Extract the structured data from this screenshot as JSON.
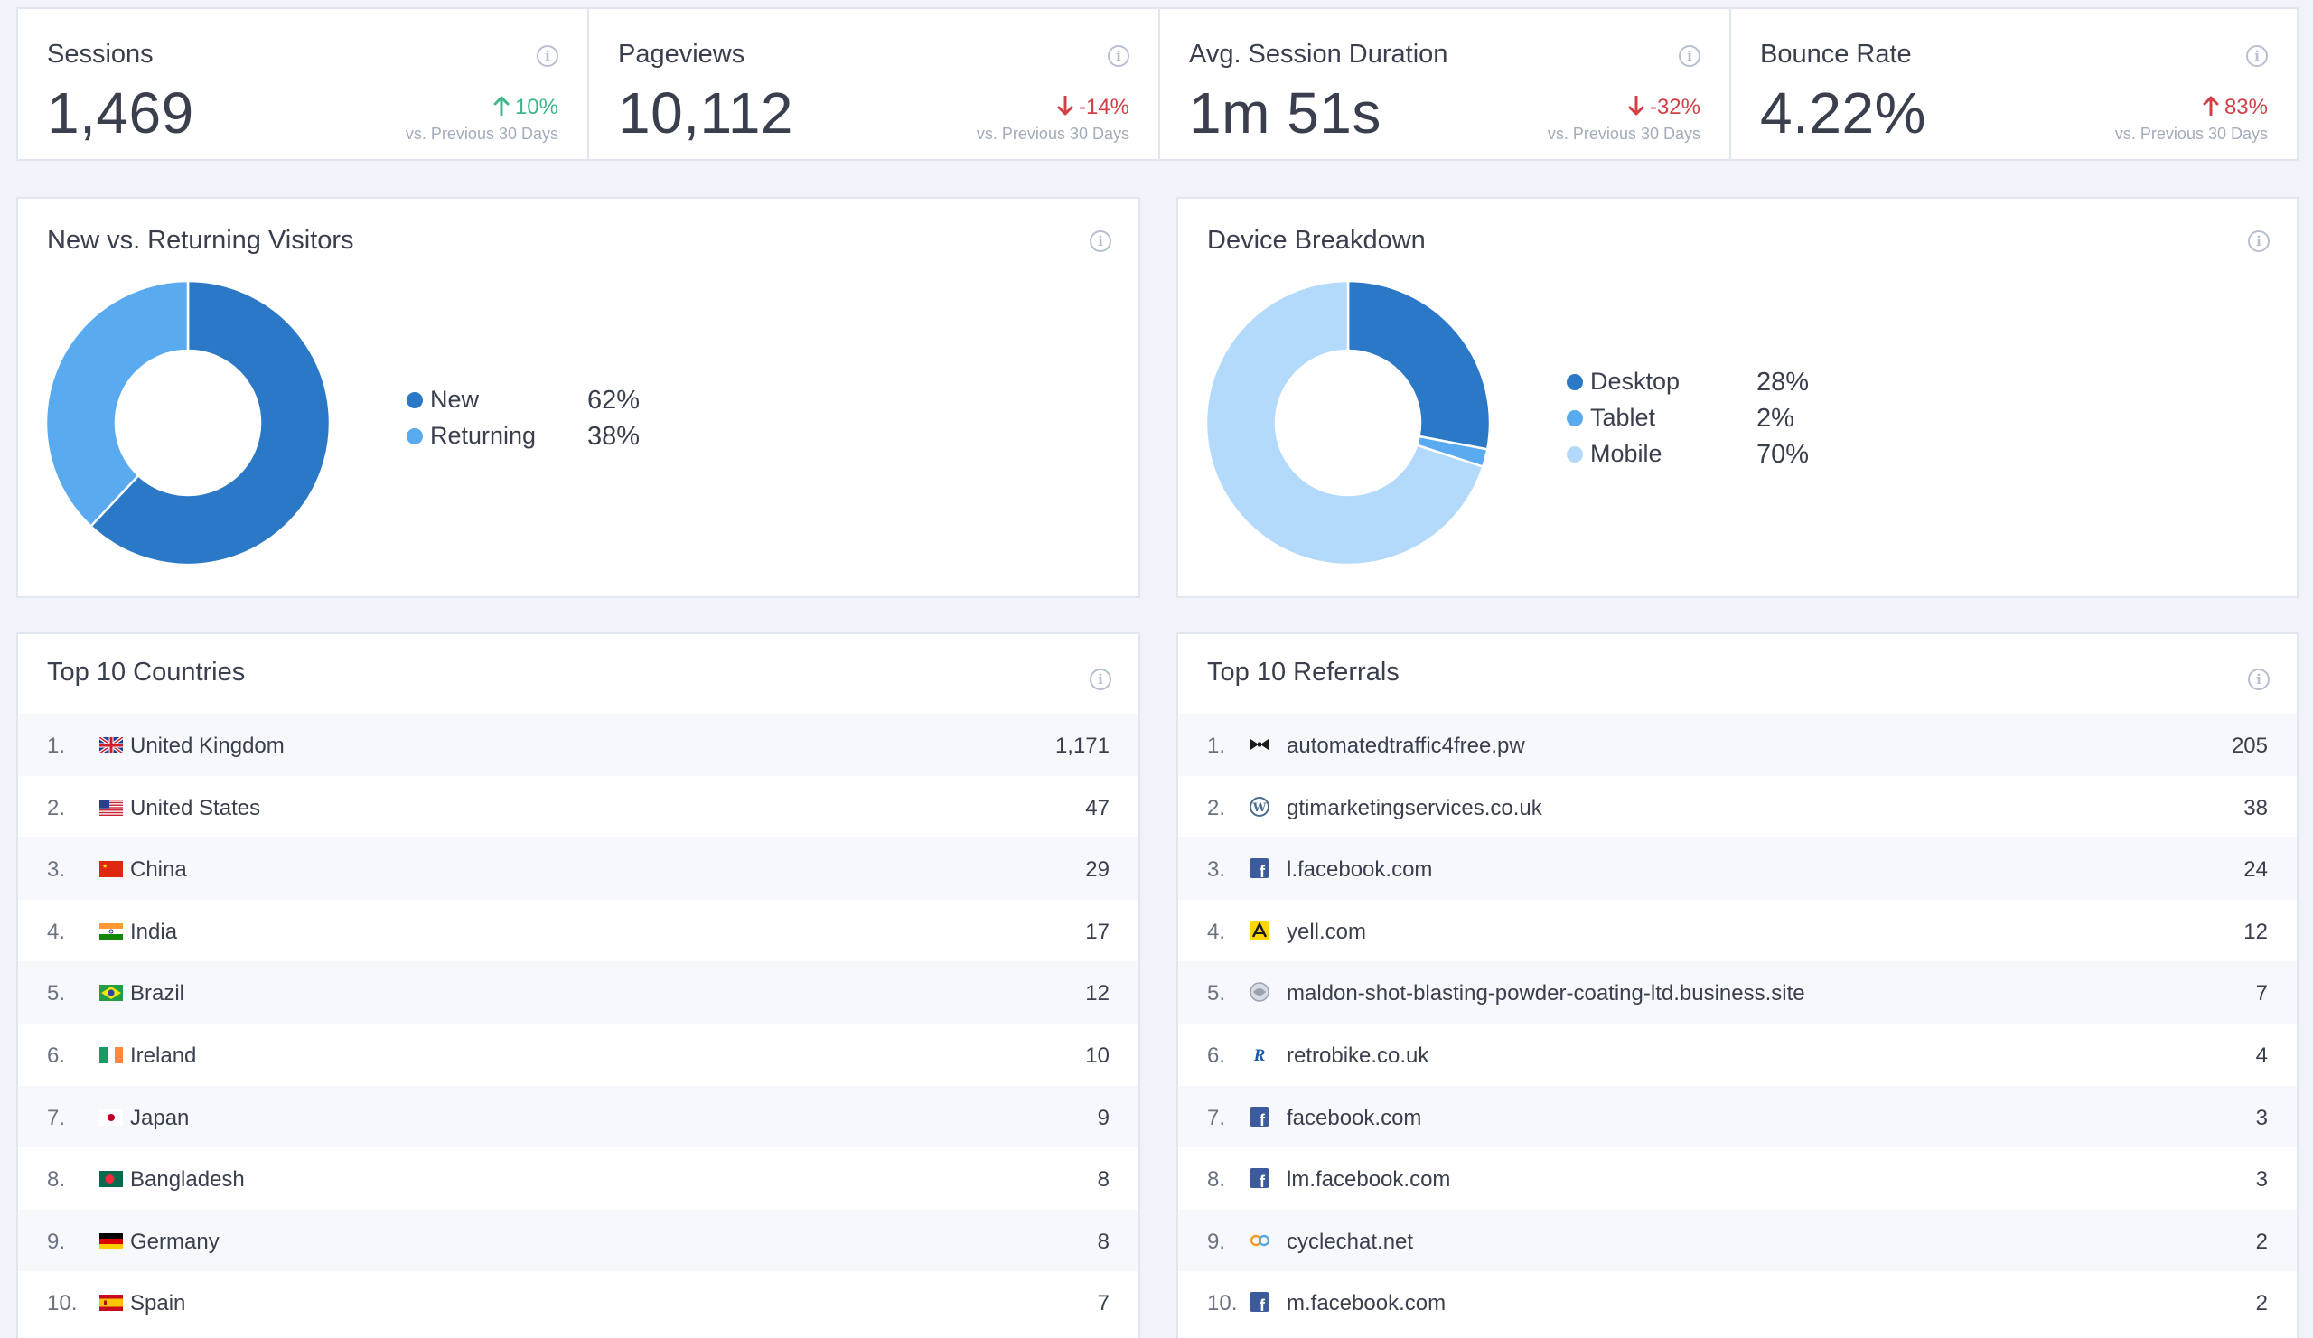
{
  "colors": {
    "up_green": "#3fb889",
    "down_red": "#d24046",
    "new": "#2b79c6",
    "returning": "#5aaaf0",
    "desktop": "#2b79c6",
    "tablet": "#5aaaf0",
    "mobile": "#b3d9fb"
  },
  "kpis": [
    {
      "title": "Sessions",
      "value": "1,469",
      "change": "10%",
      "direction": "up",
      "compare": "vs. Previous 30 Days"
    },
    {
      "title": "Pageviews",
      "value": "10,112",
      "change": "-14%",
      "direction": "down",
      "compare": "vs. Previous 30 Days"
    },
    {
      "title": "Avg. Session Duration",
      "value": "1m 51s",
      "change": "-32%",
      "direction": "down",
      "compare": "vs. Previous 30 Days"
    },
    {
      "title": "Bounce Rate",
      "value": "4.22%",
      "change": "83%",
      "direction": "up-bad",
      "compare": "vs. Previous 30 Days"
    }
  ],
  "visitors": {
    "title": "New vs. Returning Visitors",
    "items": [
      {
        "label": "New",
        "pct": "62%",
        "value": 62
      },
      {
        "label": "Returning",
        "pct": "38%",
        "value": 38
      }
    ]
  },
  "devices": {
    "title": "Device Breakdown",
    "items": [
      {
        "label": "Desktop",
        "pct": "28%",
        "value": 28
      },
      {
        "label": "Tablet",
        "pct": "2%",
        "value": 2
      },
      {
        "label": "Mobile",
        "pct": "70%",
        "value": 70
      }
    ]
  },
  "countries": {
    "title": "Top 10 Countries",
    "rows": [
      {
        "rank": "1.",
        "name": "United Kingdom",
        "count": "1,171",
        "flag": "gb-flag-icon"
      },
      {
        "rank": "2.",
        "name": "United States",
        "count": "47",
        "flag": "us-flag-icon"
      },
      {
        "rank": "3.",
        "name": "China",
        "count": "29",
        "flag": "cn-flag-icon"
      },
      {
        "rank": "4.",
        "name": "India",
        "count": "17",
        "flag": "in-flag-icon"
      },
      {
        "rank": "5.",
        "name": "Brazil",
        "count": "12",
        "flag": "br-flag-icon"
      },
      {
        "rank": "6.",
        "name": "Ireland",
        "count": "10",
        "flag": "ie-flag-icon"
      },
      {
        "rank": "7.",
        "name": "Japan",
        "count": "9",
        "flag": "jp-flag-icon"
      },
      {
        "rank": "8.",
        "name": "Bangladesh",
        "count": "8",
        "flag": "bd-flag-icon"
      },
      {
        "rank": "9.",
        "name": "Germany",
        "count": "8",
        "flag": "de-flag-icon"
      },
      {
        "rank": "10.",
        "name": "Spain",
        "count": "7",
        "flag": "es-flag-icon"
      }
    ]
  },
  "referrals": {
    "title": "Top 10 Referrals",
    "rows": [
      {
        "rank": "1.",
        "name": "automatedtraffic4free.pw",
        "count": "205",
        "icon": "bowtie-icon"
      },
      {
        "rank": "2.",
        "name": "gtimarketingservices.co.uk",
        "count": "38",
        "icon": "wordpress-icon"
      },
      {
        "rank": "3.",
        "name": "l.facebook.com",
        "count": "24",
        "icon": "facebook-icon"
      },
      {
        "rank": "4.",
        "name": "yell.com",
        "count": "12",
        "icon": "yell-icon"
      },
      {
        "rank": "5.",
        "name": "maldon-shot-blasting-powder-coating-ltd.business.site",
        "count": "7",
        "icon": "globe-icon"
      },
      {
        "rank": "6.",
        "name": "retrobike.co.uk",
        "count": "4",
        "icon": "retrobike-icon"
      },
      {
        "rank": "7.",
        "name": "facebook.com",
        "count": "3",
        "icon": "facebook-icon"
      },
      {
        "rank": "8.",
        "name": "lm.facebook.com",
        "count": "3",
        "icon": "facebook-icon"
      },
      {
        "rank": "9.",
        "name": "cyclechat.net",
        "count": "2",
        "icon": "cyclechat-icon"
      },
      {
        "rank": "10.",
        "name": "m.facebook.com",
        "count": "2",
        "icon": "facebook-icon"
      }
    ]
  }
}
